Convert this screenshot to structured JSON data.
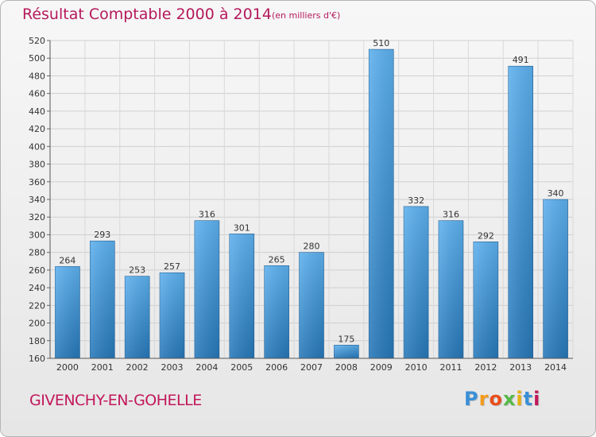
{
  "title": "Résultat Comptable 2000 à 2014",
  "subtitle": "(en milliers d'€)",
  "commune": "GIVENCHY-EN-GOHELLE",
  "logo": {
    "letters": [
      "P",
      "r",
      "o",
      "x",
      "i",
      "t",
      "i"
    ],
    "colors": [
      "#3a8fd6",
      "#f39a1b",
      "#e94e1b",
      "#56b947",
      "#e6b012",
      "#3a8fd6",
      "#c2185b"
    ]
  },
  "chart_data": {
    "type": "bar",
    "title": "Résultat Comptable 2000 à 2014",
    "ylabel": "(en milliers d'€)",
    "xlabel": "",
    "categories": [
      "2000",
      "2001",
      "2002",
      "2003",
      "2004",
      "2005",
      "2006",
      "2007",
      "2008",
      "2009",
      "2010",
      "2011",
      "2012",
      "2013",
      "2014"
    ],
    "values": [
      264,
      293,
      253,
      257,
      316,
      301,
      265,
      280,
      175,
      510,
      332,
      316,
      292,
      491,
      340
    ],
    "ylim": [
      160,
      520
    ],
    "yticks": [
      160,
      180,
      200,
      220,
      240,
      260,
      280,
      300,
      320,
      340,
      360,
      380,
      400,
      420,
      440,
      460,
      480,
      500,
      520
    ],
    "grid": true,
    "bar_color": "#3d95d8"
  }
}
